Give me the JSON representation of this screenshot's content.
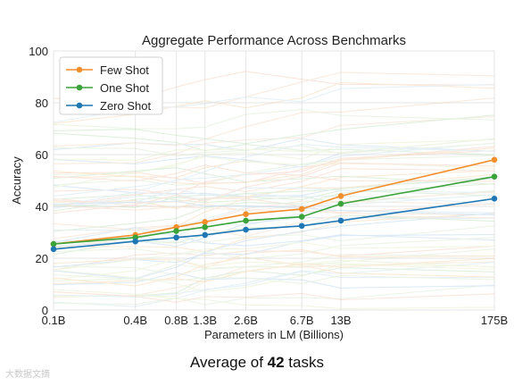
{
  "chart_data": {
    "type": "line",
    "title": "Aggregate Performance Across Benchmarks",
    "xlabel": "Parameters in LM (Billions)",
    "ylabel": "Accuracy",
    "x_scale": "log",
    "x_ticks": [
      0.1,
      0.4,
      0.8,
      1.3,
      2.6,
      6.7,
      13,
      175
    ],
    "x_tick_labels": [
      "0.1B",
      "0.4B",
      "0.8B",
      "1.3B",
      "2.6B",
      "6.7B",
      "13B",
      "175B"
    ],
    "y_ticks": [
      0,
      20,
      40,
      60,
      80,
      100
    ],
    "ylim": [
      0,
      100
    ],
    "grid": true,
    "legend_position": "top-left",
    "series": [
      {
        "name": "Few Shot",
        "color": "#f28e2b",
        "values": [
          25.5,
          29,
          32,
          34,
          37,
          39,
          44,
          58
        ]
      },
      {
        "name": "One Shot",
        "color": "#3aa33a",
        "values": [
          25.5,
          28,
          30.5,
          32,
          34.5,
          36,
          41,
          51.5
        ]
      },
      {
        "name": "Zero Shot",
        "color": "#1f77b4",
        "values": [
          23.5,
          26.5,
          28,
          29,
          31,
          32.5,
          34.5,
          43
        ]
      }
    ],
    "background_lines_note": "many faint per-task lines in pastel colors"
  },
  "caption": {
    "prefix": "Average of ",
    "number": "42",
    "suffix": " tasks"
  },
  "watermark": "大数据文摘"
}
